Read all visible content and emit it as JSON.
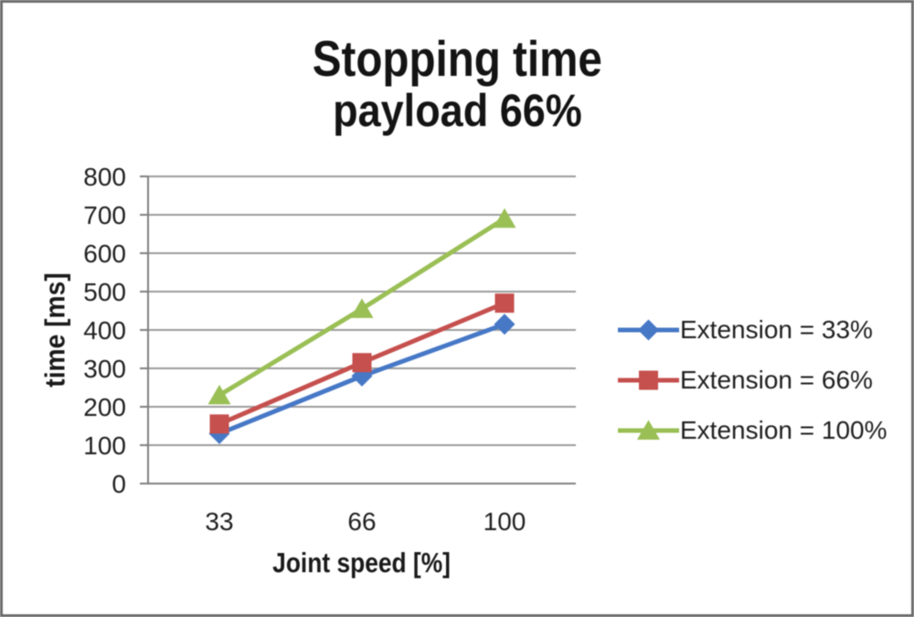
{
  "chart_data": {
    "type": "line",
    "title": "Stopping time",
    "subtitle": "payload 66%",
    "xlabel": "Joint speed [%]",
    "ylabel": "time [ms]",
    "categories": [
      33,
      66,
      100
    ],
    "series": [
      {
        "name": "Extension = 33%",
        "marker": "diamond",
        "color": "#4678C6",
        "values": [
          130,
          280,
          415
        ]
      },
      {
        "name": "Extension = 66%",
        "marker": "square",
        "color": "#C5504E",
        "values": [
          155,
          315,
          470
        ]
      },
      {
        "name": "Extension = 100%",
        "marker": "triangle",
        "color": "#9ABF55",
        "values": [
          230,
          455,
          690
        ]
      }
    ],
    "ylim": [
      0,
      800
    ],
    "yticks": [
      0,
      100,
      200,
      300,
      400,
      500,
      600,
      700,
      800
    ],
    "grid": true,
    "legend_position": "right"
  },
  "style": {
    "background": "#FFFFFF",
    "border_color": "#6B6B6B",
    "gridline_color": "#9C9C9C",
    "axis_color": "#7F7F7F",
    "text_color": "#1F1F1F"
  }
}
